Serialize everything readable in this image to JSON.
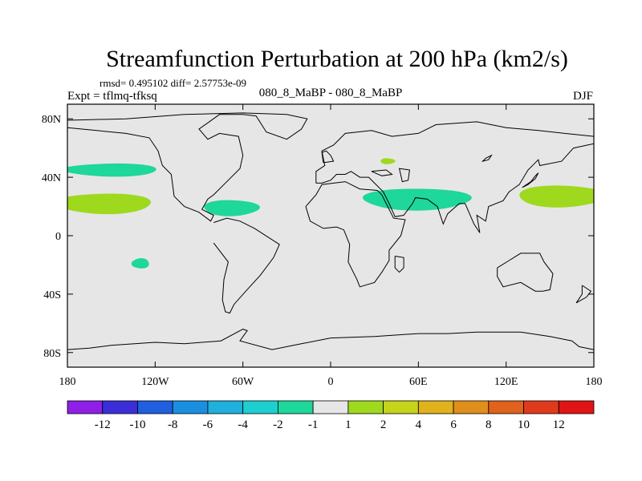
{
  "chart_data": {
    "type": "heatmap",
    "title": "Streamfunction Perturbation at 200 hPa (km2/s)",
    "stats_text": "rmsd= 0.495102 diff= 2.57753e-09",
    "expt_text": "Expt = tflmq-tfksq",
    "subtitle": "080_8_MaBP - 080_8_MaBP",
    "season": "DJF",
    "xlim": [
      -180,
      180
    ],
    "ylim": [
      -90,
      90
    ],
    "x_ticks": [
      {
        "value": -180,
        "label": "180"
      },
      {
        "value": -120,
        "label": "120W"
      },
      {
        "value": -60,
        "label": "60W"
      },
      {
        "value": 0,
        "label": "0"
      },
      {
        "value": 60,
        "label": "60E"
      },
      {
        "value": 120,
        "label": "120E"
      },
      {
        "value": 180,
        "label": "180"
      }
    ],
    "y_ticks": [
      {
        "value": 80,
        "label": "80N"
      },
      {
        "value": 40,
        "label": "40N"
      },
      {
        "value": 0,
        "label": "0"
      },
      {
        "value": -40,
        "label": "40S"
      },
      {
        "value": -80,
        "label": "80S"
      }
    ],
    "background_color": "#e6e6e6",
    "colorbar": {
      "colors": [
        "#8f1fe6",
        "#3b2ed9",
        "#1f5fe0",
        "#1a8fe0",
        "#1fb0dd",
        "#1ecfd0",
        "#1ed79a",
        "#e6e6e6",
        "#9ed91e",
        "#c6d41a",
        "#e0b21c",
        "#e08f1c",
        "#e0621c",
        "#e03a1c",
        "#e01414"
      ],
      "labels": [
        "-12",
        "-10",
        "-8",
        "-6",
        "-4",
        "-2",
        "-1",
        "1",
        "2",
        "4",
        "6",
        "8",
        "10",
        "12"
      ]
    },
    "anomaly_regions": [
      {
        "name": "n-pacific-neg",
        "level": "-2 to -1",
        "color": "#1ed79a",
        "lon": -150,
        "lat": 45,
        "lon_half_width": 32,
        "lat_half_width": 4.5
      },
      {
        "name": "pacific-subtropics-pos",
        "level": "1 to 2",
        "color": "#9ed91e",
        "lon": -155,
        "lat": 22,
        "lon_half_width": 33,
        "lat_half_width": 7
      },
      {
        "name": "s-pacific-neg",
        "level": "-2 to -1",
        "color": "#1ed79a",
        "lon": -130,
        "lat": -19,
        "lon_half_width": 6,
        "lat_half_width": 3.5
      },
      {
        "name": "atlantic-neg",
        "level": "-2 to -1",
        "color": "#1ed79a",
        "lon": -68,
        "lat": 19,
        "lon_half_width": 19,
        "lat_half_width": 5.5
      },
      {
        "name": "asia-neg",
        "level": "-2 to -1",
        "color": "#1ed79a",
        "lon": 59,
        "lat": 25,
        "lon_half_width": 37,
        "lat_half_width": 7.5
      },
      {
        "name": "central-asia-pos",
        "level": "1 to 2",
        "color": "#9ed91e",
        "lon": 39,
        "lat": 51,
        "lon_half_width": 5,
        "lat_half_width": 2
      },
      {
        "name": "w-pacific-pos",
        "level": "1 to 2",
        "color": "#9ed91e",
        "lon": 158,
        "lat": 27,
        "lon_half_width": 30,
        "lat_half_width": 7.5
      }
    ],
    "coastlines": [
      {
        "name": "north-america",
        "points": [
          [
            -180,
            74
          ],
          [
            -160,
            72
          ],
          [
            -140,
            70
          ],
          [
            -124,
            67
          ],
          [
            -118,
            58
          ],
          [
            -115,
            48
          ],
          [
            -109,
            42
          ],
          [
            -107,
            27
          ],
          [
            -100,
            20
          ],
          [
            -90,
            16
          ],
          [
            -82,
            10
          ],
          [
            -80,
            14
          ],
          [
            -88,
            18
          ],
          [
            -84,
            25
          ],
          [
            -80,
            28
          ],
          [
            -70,
            38
          ],
          [
            -62,
            46
          ],
          [
            -60,
            55
          ],
          [
            -63,
            68
          ],
          [
            -76,
            70
          ],
          [
            -84,
            66
          ],
          [
            -90,
            73
          ],
          [
            -76,
            83
          ],
          [
            -60,
            83
          ],
          [
            -51,
            82
          ],
          [
            -44,
            71
          ],
          [
            -30,
            66
          ],
          [
            -20,
            73
          ],
          [
            -16,
            80
          ],
          [
            -30,
            83
          ],
          [
            -60,
            84
          ],
          [
            -100,
            83
          ],
          [
            -140,
            80
          ],
          [
            -180,
            79
          ]
        ]
      },
      {
        "name": "south-america",
        "points": [
          [
            -80,
            9
          ],
          [
            -71,
            12
          ],
          [
            -62,
            10
          ],
          [
            -52,
            5
          ],
          [
            -35,
            -6
          ],
          [
            -39,
            -15
          ],
          [
            -48,
            -27
          ],
          [
            -58,
            -38
          ],
          [
            -66,
            -47
          ],
          [
            -69,
            -53
          ],
          [
            -72,
            -52
          ],
          [
            -74,
            -44
          ],
          [
            -73,
            -30
          ],
          [
            -70,
            -18
          ],
          [
            -80,
            -5
          ]
        ]
      },
      {
        "name": "europe-asia",
        "points": [
          [
            -10,
            36
          ],
          [
            -10,
            44
          ],
          [
            -4,
            48
          ],
          [
            -6,
            58
          ],
          [
            2,
            62
          ],
          [
            10,
            70
          ],
          [
            28,
            72
          ],
          [
            42,
            68
          ],
          [
            60,
            70
          ],
          [
            72,
            76
          ],
          [
            100,
            78
          ],
          [
            120,
            74
          ],
          [
            142,
            72
          ],
          [
            160,
            70
          ],
          [
            180,
            68
          ],
          [
            180,
            63
          ],
          [
            166,
            60
          ],
          [
            158,
            51
          ],
          [
            143,
            48
          ],
          [
            142,
            52
          ],
          [
            135,
            45
          ],
          [
            129,
            35
          ],
          [
            122,
            30
          ],
          [
            118,
            24
          ],
          [
            108,
            20
          ],
          [
            106,
            10
          ],
          [
            100,
            14
          ],
          [
            102,
            2
          ],
          [
            98,
            8
          ],
          [
            92,
            22
          ],
          [
            88,
            22
          ],
          [
            80,
            15
          ],
          [
            77,
            8
          ],
          [
            73,
            20
          ],
          [
            66,
            25
          ],
          [
            58,
            26
          ],
          [
            56,
            22
          ],
          [
            50,
            14
          ],
          [
            44,
            13
          ],
          [
            40,
            22
          ],
          [
            36,
            30
          ],
          [
            30,
            36
          ],
          [
            26,
            40
          ],
          [
            20,
            40
          ],
          [
            14,
            44
          ],
          [
            10,
            42
          ],
          [
            4,
            42
          ],
          [
            0,
            38
          ],
          [
            -6,
            36
          ],
          [
            -10,
            36
          ]
        ]
      },
      {
        "name": "africa",
        "points": [
          [
            -17,
            20
          ],
          [
            -10,
            28
          ],
          [
            -6,
            35
          ],
          [
            10,
            37
          ],
          [
            20,
            32
          ],
          [
            32,
            31
          ],
          [
            35,
            28
          ],
          [
            43,
            12
          ],
          [
            51,
            11
          ],
          [
            48,
            0
          ],
          [
            40,
            -10
          ],
          [
            40,
            -17
          ],
          [
            35,
            -25
          ],
          [
            30,
            -32
          ],
          [
            20,
            -35
          ],
          [
            18,
            -30
          ],
          [
            12,
            -18
          ],
          [
            13,
            -6
          ],
          [
            9,
            4
          ],
          [
            4,
            6
          ],
          [
            -5,
            5
          ],
          [
            -14,
            10
          ],
          [
            -17,
            20
          ]
        ]
      },
      {
        "name": "australia",
        "points": [
          [
            114,
            -22
          ],
          [
            122,
            -17
          ],
          [
            130,
            -12
          ],
          [
            137,
            -12
          ],
          [
            143,
            -12
          ],
          [
            146,
            -18
          ],
          [
            152,
            -26
          ],
          [
            150,
            -37
          ],
          [
            145,
            -38
          ],
          [
            140,
            -38
          ],
          [
            130,
            -32
          ],
          [
            118,
            -35
          ],
          [
            114,
            -28
          ],
          [
            114,
            -22
          ]
        ]
      },
      {
        "name": "antarctica-coast",
        "points": [
          [
            -180,
            -78
          ],
          [
            -165,
            -77
          ],
          [
            -150,
            -75
          ],
          [
            -120,
            -73
          ],
          [
            -100,
            -74
          ],
          [
            -75,
            -72
          ],
          [
            -60,
            -64
          ],
          [
            -57,
            -65
          ],
          [
            -62,
            -72
          ],
          [
            -40,
            -78
          ],
          [
            -20,
            -74
          ],
          [
            0,
            -70
          ],
          [
            30,
            -69
          ],
          [
            60,
            -67
          ],
          [
            80,
            -67
          ],
          [
            100,
            -66
          ],
          [
            130,
            -66
          ],
          [
            150,
            -69
          ],
          [
            165,
            -72
          ],
          [
            170,
            -76
          ],
          [
            180,
            -78
          ]
        ]
      },
      {
        "name": "british-isles",
        "points": [
          [
            -5,
            50
          ],
          [
            2,
            51
          ],
          [
            0,
            55
          ],
          [
            -3,
            58
          ],
          [
            -6,
            57
          ],
          [
            -5,
            50
          ]
        ]
      },
      {
        "name": "japan",
        "points": [
          [
            131,
            33
          ],
          [
            135,
            35
          ],
          [
            140,
            39
          ],
          [
            142,
            43
          ],
          [
            140,
            41
          ],
          [
            137,
            37
          ],
          [
            131,
            33
          ]
        ]
      },
      {
        "name": "madagascar",
        "points": [
          [
            44,
            -14
          ],
          [
            50,
            -15
          ],
          [
            50,
            -22
          ],
          [
            47,
            -25
          ],
          [
            44,
            -22
          ],
          [
            44,
            -14
          ]
        ]
      },
      {
        "name": "new-zealand",
        "points": [
          [
            172,
            -34
          ],
          [
            178,
            -38
          ],
          [
            175,
            -42
          ],
          [
            168,
            -46
          ],
          [
            172,
            -40
          ],
          [
            172,
            -34
          ]
        ]
      }
    ],
    "lakes": [
      {
        "name": "caspian-sea",
        "points": [
          [
            47,
            46
          ],
          [
            54,
            45
          ],
          [
            53,
            38
          ],
          [
            49,
            37
          ],
          [
            47,
            46
          ]
        ]
      },
      {
        "name": "black-sea",
        "points": [
          [
            28,
            44
          ],
          [
            38,
            45
          ],
          [
            42,
            42
          ],
          [
            35,
            41
          ],
          [
            28,
            44
          ]
        ]
      },
      {
        "name": "lake-baikal",
        "points": [
          [
            104,
            51
          ],
          [
            108,
            52
          ],
          [
            110,
            55
          ],
          [
            106,
            53
          ],
          [
            104,
            51
          ]
        ]
      }
    ]
  }
}
